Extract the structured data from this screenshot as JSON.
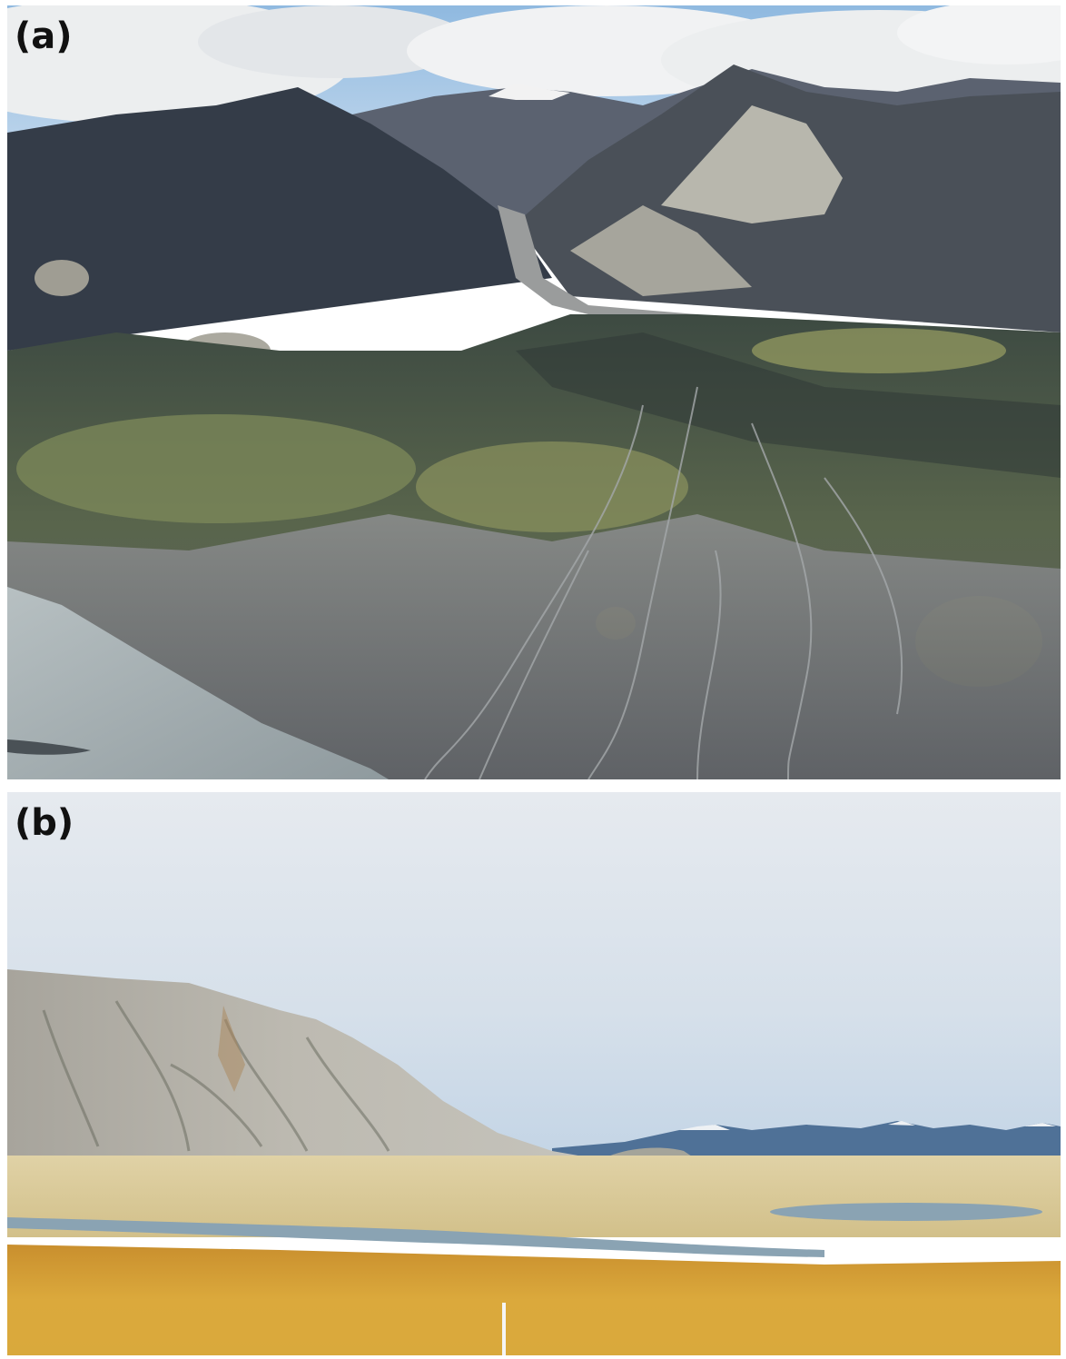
{
  "panels": [
    {
      "label": "(a)",
      "photo": "aerial-braided-river-valley-photo",
      "colors": {
        "sky": "#9ec3e4",
        "cloud": "#eef0f2",
        "mountain_dark": "#3a4350",
        "mountain_light": "#b9b8ad",
        "forest": "#4b5a45",
        "vegetation": "#8a9460",
        "gravel": "#6f7176",
        "lake": "#aab3b6"
      }
    },
    {
      "label": "(b)",
      "photo": "lakeshore-mountain-grassland-photo",
      "colors": {
        "sky": "#dfe6ed",
        "mountain": "#b3b1a8",
        "distant_range": "#4d6f94",
        "lake": "#6f9fc8",
        "sediment_flat": "#d9c896",
        "water": "#8fa7b4",
        "grass": "#d6a63a"
      }
    }
  ]
}
